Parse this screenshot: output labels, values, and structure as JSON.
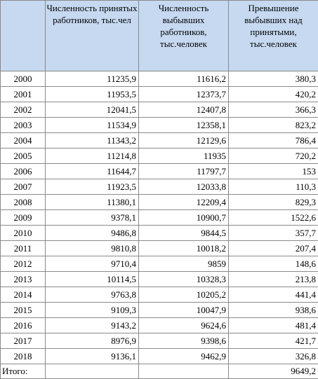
{
  "table": {
    "headers": [
      "",
      "Численность принятых работников, тыс.чел",
      "Численность выбывших работников, тыс.человек",
      "Превышение выбывших над принятыми, тыс.человек"
    ],
    "rows": [
      {
        "year": "2000",
        "hired": "11235,9",
        "left": "11616,2",
        "excess": "380,3"
      },
      {
        "year": "2001",
        "hired": "11953,5",
        "left": "12373,7",
        "excess": "420,2"
      },
      {
        "year": "2002",
        "hired": "12041,5",
        "left": "12407,8",
        "excess": "366,3"
      },
      {
        "year": "2003",
        "hired": "11534,9",
        "left": "12358,1",
        "excess": "823,2"
      },
      {
        "year": "2004",
        "hired": "11343,2",
        "left": "12129,6",
        "excess": "786,4"
      },
      {
        "year": "2005",
        "hired": "11214,8",
        "left": "11935",
        "excess": "720,2"
      },
      {
        "year": "2006",
        "hired": "11644,7",
        "left": "11797,7",
        "excess": "153"
      },
      {
        "year": "2007",
        "hired": "11923,5",
        "left": "12033,8",
        "excess": "110,3"
      },
      {
        "year": "2008",
        "hired": "11380,1",
        "left": "12209,4",
        "excess": "829,3"
      },
      {
        "year": "2009",
        "hired": "9378,1",
        "left": "10900,7",
        "excess": "1522,6"
      },
      {
        "year": "2010",
        "hired": "9486,8",
        "left": "9844,5",
        "excess": "357,7"
      },
      {
        "year": "2011",
        "hired": "9810,8",
        "left": "10018,2",
        "excess": "207,4"
      },
      {
        "year": "2012",
        "hired": "9710,4",
        "left": "9859",
        "excess": "148,6"
      },
      {
        "year": "2013",
        "hired": "10114,5",
        "left": "10328,3",
        "excess": "213,8"
      },
      {
        "year": "2014",
        "hired": "9763,8",
        "left": "10205,2",
        "excess": "441,4"
      },
      {
        "year": "2015",
        "hired": "9109,3",
        "left": "10047,9",
        "excess": "938,6"
      },
      {
        "year": "2016",
        "hired": "9143,2",
        "left": "9624,6",
        "excess": "481,4"
      },
      {
        "year": "2017",
        "hired": "8976,9",
        "left": "9398,6",
        "excess": "421,7"
      },
      {
        "year": "2018",
        "hired": "9136,1",
        "left": "9462,9",
        "excess": "326,8"
      }
    ],
    "total": {
      "label": "Итого:",
      "hired": "",
      "left": "",
      "excess": "9649,2"
    }
  },
  "colors": {
    "header_bg": "#c6d9f1",
    "border": "#8a8a8a"
  }
}
